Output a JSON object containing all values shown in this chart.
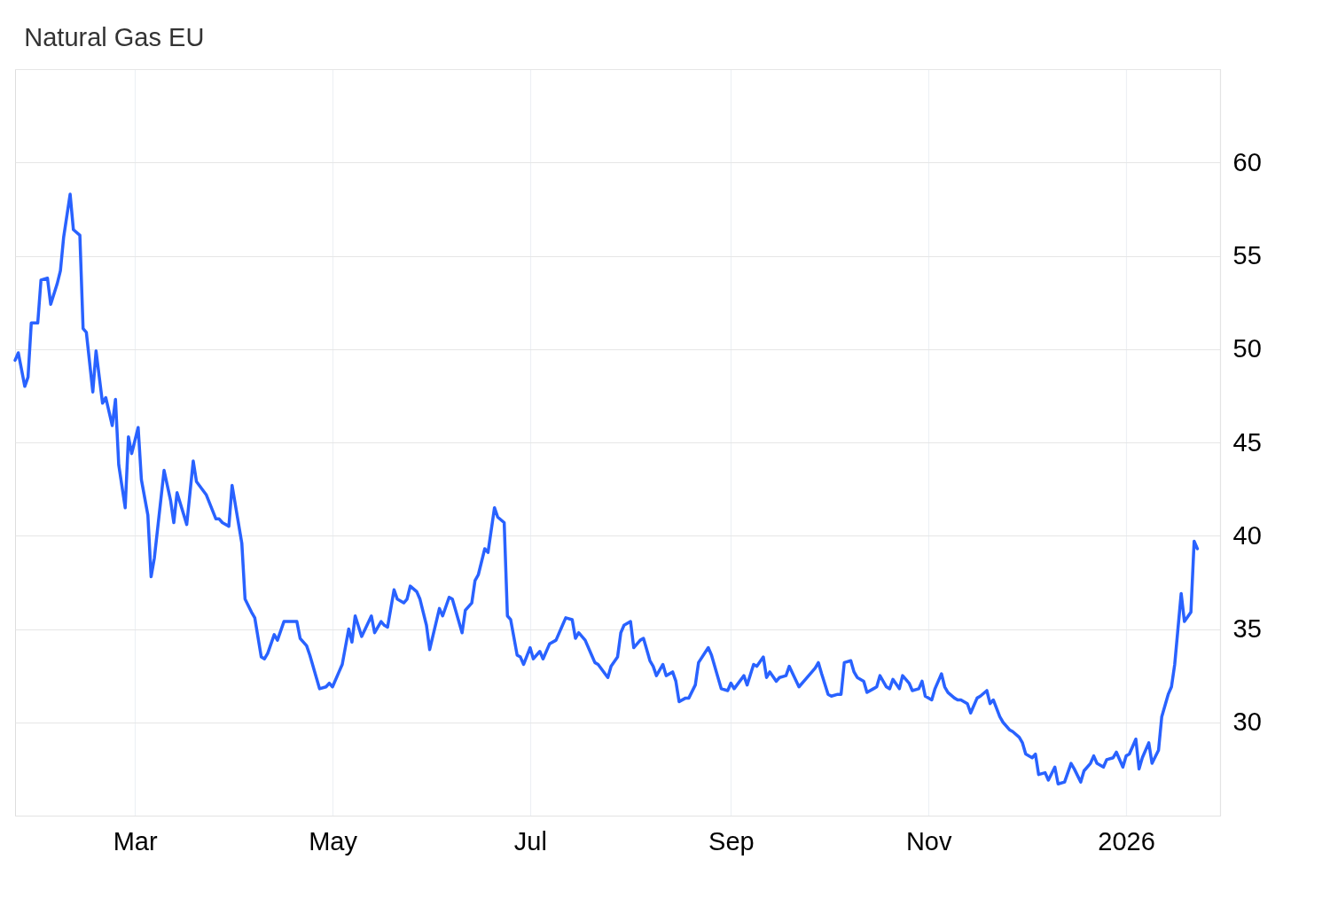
{
  "chart_data": {
    "type": "line",
    "title": "Natural Gas EU",
    "x": [
      "2025-01-23",
      "2025-01-24",
      "2025-01-26",
      "2025-01-27",
      "2025-01-28",
      "2025-01-30",
      "2025-01-31",
      "2025-02-02",
      "2025-02-03",
      "2025-02-05",
      "2025-02-06",
      "2025-02-07",
      "2025-02-09",
      "2025-02-10",
      "2025-02-12",
      "2025-02-13",
      "2025-02-14",
      "2025-02-16",
      "2025-02-17",
      "2025-02-19",
      "2025-02-20",
      "2025-02-22",
      "2025-02-23",
      "2025-02-24",
      "2025-02-26",
      "2025-02-27",
      "2025-02-28",
      "2025-03-02",
      "2025-03-03",
      "2025-03-05",
      "2025-03-06",
      "2025-03-07",
      "2025-03-10",
      "2025-03-12",
      "2025-03-13",
      "2025-03-14",
      "2025-03-17",
      "2025-03-19",
      "2025-03-20",
      "2025-03-23",
      "2025-03-26",
      "2025-03-27",
      "2025-03-28",
      "2025-03-30",
      "2025-03-31",
      "2025-04-03",
      "2025-04-04",
      "2025-04-06",
      "2025-04-07",
      "2025-04-09",
      "2025-04-10",
      "2025-04-11",
      "2025-04-13",
      "2025-04-14",
      "2025-04-16",
      "2025-04-20",
      "2025-04-21",
      "2025-04-23",
      "2025-04-24",
      "2025-04-26",
      "2025-04-27",
      "2025-04-29",
      "2025-04-30",
      "2025-05-01",
      "2025-05-03",
      "2025-05-04",
      "2025-05-06",
      "2025-05-07",
      "2025-05-08",
      "2025-05-10",
      "2025-05-13",
      "2025-05-14",
      "2025-05-16",
      "2025-05-17",
      "2025-05-18",
      "2025-05-20",
      "2025-05-21",
      "2025-05-23",
      "2025-05-24",
      "2025-05-25",
      "2025-05-27",
      "2025-05-28",
      "2025-05-30",
      "2025-05-31",
      "2025-06-03",
      "2025-06-04",
      "2025-06-06",
      "2025-06-07",
      "2025-06-10",
      "2025-06-11",
      "2025-06-13",
      "2025-06-14",
      "2025-06-15",
      "2025-06-17",
      "2025-06-18",
      "2025-06-20",
      "2025-06-21",
      "2025-06-23",
      "2025-06-24",
      "2025-06-25",
      "2025-06-27",
      "2025-06-28",
      "2025-06-29",
      "2025-07-01",
      "2025-07-02",
      "2025-07-04",
      "2025-07-05",
      "2025-07-07",
      "2025-07-09",
      "2025-07-11",
      "2025-07-12",
      "2025-07-14",
      "2025-07-15",
      "2025-07-16",
      "2025-07-18",
      "2025-07-20",
      "2025-07-21",
      "2025-07-22",
      "2025-07-25",
      "2025-07-26",
      "2025-07-28",
      "2025-07-29",
      "2025-07-30",
      "2025-08-01",
      "2025-08-02",
      "2025-08-04",
      "2025-08-05",
      "2025-08-07",
      "2025-08-08",
      "2025-08-09",
      "2025-08-11",
      "2025-08-12",
      "2025-08-14",
      "2025-08-15",
      "2025-08-16",
      "2025-08-18",
      "2025-08-19",
      "2025-08-21",
      "2025-08-22",
      "2025-08-25",
      "2025-08-26",
      "2025-08-29",
      "2025-08-31",
      "2025-09-01",
      "2025-09-02",
      "2025-09-05",
      "2025-09-06",
      "2025-09-08",
      "2025-09-09",
      "2025-09-11",
      "2025-09-12",
      "2025-09-13",
      "2025-09-15",
      "2025-09-16",
      "2025-09-18",
      "2025-09-19",
      "2025-09-22",
      "2025-09-24",
      "2025-09-25",
      "2025-09-27",
      "2025-09-28",
      "2025-09-29",
      "2025-10-01",
      "2025-10-02",
      "2025-10-04",
      "2025-10-05",
      "2025-10-06",
      "2025-10-08",
      "2025-10-09",
      "2025-10-10",
      "2025-10-12",
      "2025-10-13",
      "2025-10-15",
      "2025-10-16",
      "2025-10-17",
      "2025-10-19",
      "2025-10-20",
      "2025-10-21",
      "2025-10-23",
      "2025-10-24",
      "2025-10-26",
      "2025-10-27",
      "2025-10-29",
      "2025-10-30",
      "2025-10-31",
      "2025-11-02",
      "2025-11-03",
      "2025-11-05",
      "2025-11-06",
      "2025-11-07",
      "2025-11-09",
      "2025-11-10",
      "2025-11-11",
      "2025-11-13",
      "2025-11-14",
      "2025-11-16",
      "2025-11-17",
      "2025-11-19",
      "2025-11-20",
      "2025-11-21",
      "2025-11-23",
      "2025-11-24",
      "2025-11-26",
      "2025-11-27",
      "2025-11-29",
      "2025-11-30",
      "2025-12-01",
      "2025-12-03",
      "2025-12-04",
      "2025-12-05",
      "2025-12-07",
      "2025-12-08",
      "2025-12-10",
      "2025-12-11",
      "2025-12-13",
      "2025-12-15",
      "2025-12-16",
      "2025-12-18",
      "2025-12-19",
      "2025-12-21",
      "2025-12-22",
      "2025-12-23",
      "2025-12-25",
      "2025-12-26",
      "2025-12-28",
      "2025-12-29",
      "2025-12-31",
      "2026-01-01",
      "2026-01-02",
      "2026-01-04",
      "2026-01-05",
      "2026-01-06",
      "2026-01-08",
      "2026-01-09",
      "2026-01-11",
      "2026-01-12",
      "2026-01-14",
      "2026-01-15",
      "2026-01-16",
      "2026-01-18",
      "2026-01-19",
      "2026-01-21",
      "2026-01-22",
      "2026-01-23"
    ],
    "series": [
      {
        "color": "#2962ff",
        "values": [
          49.4,
          49.8,
          48.0,
          48.5,
          51.4,
          51.4,
          53.7,
          53.8,
          52.4,
          53.5,
          54.2,
          56.0,
          58.3,
          56.4,
          56.1,
          51.1,
          50.9,
          47.7,
          49.9,
          47.1,
          47.4,
          45.9,
          47.3,
          43.8,
          41.5,
          45.3,
          44.4,
          45.8,
          43.0,
          41.1,
          37.8,
          38.8,
          43.5,
          41.9,
          40.7,
          42.3,
          40.6,
          44.0,
          42.9,
          42.2,
          40.9,
          40.9,
          40.7,
          40.5,
          42.7,
          39.6,
          36.6,
          35.9,
          35.6,
          33.5,
          33.4,
          33.7,
          34.7,
          34.4,
          35.4,
          35.4,
          34.5,
          34.1,
          33.6,
          32.4,
          31.8,
          31.9,
          32.1,
          31.9,
          32.7,
          33.1,
          35.0,
          34.3,
          35.7,
          34.6,
          35.7,
          34.8,
          35.4,
          35.2,
          35.1,
          37.1,
          36.6,
          36.4,
          36.6,
          37.3,
          37.0,
          36.6,
          35.2,
          33.9,
          36.1,
          35.7,
          36.7,
          36.6,
          34.8,
          36.0,
          36.4,
          37.6,
          37.9,
          39.3,
          39.1,
          41.5,
          41.0,
          40.7,
          35.7,
          35.5,
          33.6,
          33.5,
          33.1,
          34.0,
          33.4,
          33.8,
          33.4,
          34.2,
          34.4,
          35.2,
          35.6,
          35.5,
          34.5,
          34.8,
          34.4,
          33.6,
          33.2,
          33.1,
          32.4,
          33.0,
          33.5,
          34.8,
          35.2,
          35.4,
          34.0,
          34.4,
          34.5,
          33.3,
          33.0,
          32.5,
          33.1,
          32.5,
          32.7,
          32.2,
          31.1,
          31.3,
          31.3,
          32.0,
          33.2,
          34.0,
          33.6,
          31.8,
          31.7,
          32.1,
          31.8,
          32.5,
          32.0,
          33.1,
          33.0,
          33.5,
          32.4,
          32.7,
          32.2,
          32.4,
          32.5,
          33.0,
          31.9,
          32.3,
          32.5,
          32.9,
          33.2,
          32.6,
          31.5,
          31.4,
          31.5,
          31.5,
          33.2,
          33.3,
          32.7,
          32.4,
          32.2,
          31.6,
          31.8,
          31.9,
          32.5,
          31.9,
          31.8,
          32.3,
          31.8,
          32.5,
          32.1,
          31.7,
          31.8,
          32.2,
          31.4,
          31.2,
          31.8,
          32.6,
          31.9,
          31.6,
          31.3,
          31.2,
          31.2,
          31.0,
          30.5,
          31.3,
          31.4,
          31.7,
          31.0,
          31.2,
          30.3,
          30.0,
          29.6,
          29.5,
          29.2,
          28.9,
          28.3,
          28.1,
          28.3,
          27.2,
          27.3,
          26.9,
          27.6,
          26.7,
          26.8,
          27.8,
          27.5,
          26.8,
          27.4,
          27.8,
          28.2,
          27.8,
          27.6,
          28.0,
          28.1,
          28.4,
          27.6,
          28.2,
          28.3,
          29.1,
          27.5,
          28.1,
          28.9,
          27.8,
          28.5,
          30.3,
          31.5,
          31.9,
          33.1,
          36.9,
          35.4,
          35.9,
          39.7,
          39.3
        ]
      }
    ],
    "xlim": [
      "2025-01-23",
      "2026-01-30"
    ],
    "ylim": [
      25,
      65
    ],
    "xticks": [
      {
        "value": "2025-03-01",
        "label": "Mar"
      },
      {
        "value": "2025-05-01",
        "label": "May"
      },
      {
        "value": "2025-07-01",
        "label": "Jul"
      },
      {
        "value": "2025-09-01",
        "label": "Sep"
      },
      {
        "value": "2025-11-01",
        "label": "Nov"
      },
      {
        "value": "2026-01-01",
        "label": "2026"
      }
    ],
    "yticks": [
      30,
      35,
      40,
      45,
      50,
      55,
      60,
      {
        "value": 65,
        "label": null
      }
    ],
    "grid": true
  }
}
